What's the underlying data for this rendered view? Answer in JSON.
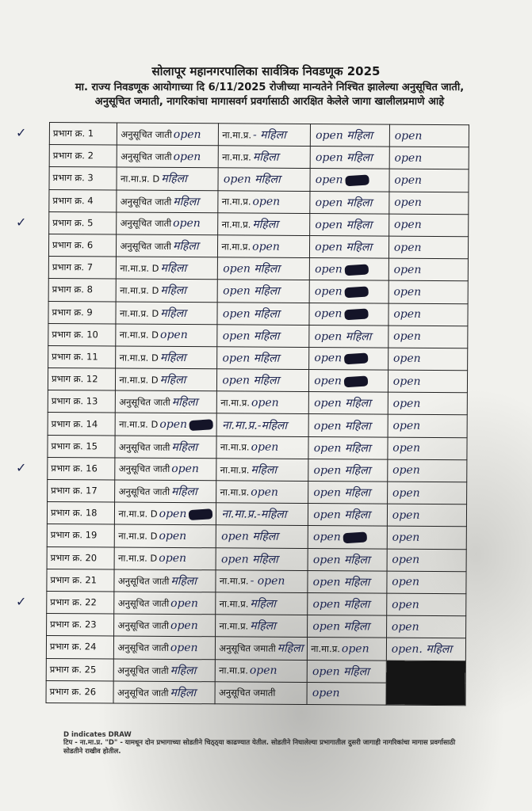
{
  "header": {
    "title": "सोलापूर महानगरपालिका सार्वत्रिक निवडणूक 2025",
    "line1": "मा. राज्य निवडणूक आयोगाच्या दि 6/11/2025 रोजीच्या मान्यतेने निश्चित झालेल्या अनुसूचित जाती,",
    "line2": "अनुसूचित जमाती, नागरिकांचा मागासवर्ग प्रवर्गासाठी आरक्षित केलेले जागा खालीलप्रमाणे आहे"
  },
  "ink_color": "#1c2450",
  "rows": [
    {
      "ward": "प्रभाग क्र. 1",
      "check": true,
      "cells": [
        [
          "अनुसूचित जाती",
          "open",
          false
        ],
        [
          "ना.मा.प्र.",
          "- महिला",
          false
        ],
        [
          "",
          "open महिला",
          false
        ],
        [
          "",
          "open",
          false
        ]
      ]
    },
    {
      "ward": "प्रभाग क्र. 2",
      "cells": [
        [
          "अनुसूचित जाती",
          "open",
          false
        ],
        [
          "ना.मा.प्र.",
          "महिला",
          false
        ],
        [
          "",
          "open महिला",
          false
        ],
        [
          "",
          "open",
          false
        ]
      ]
    },
    {
      "ward": "प्रभाग क्र. 3",
      "cells": [
        [
          "ना.मा.प्र. D",
          "महिला",
          false
        ],
        [
          "",
          "open महिला",
          false
        ],
        [
          "",
          "open",
          true
        ],
        [
          "",
          "open",
          false
        ]
      ]
    },
    {
      "ward": "प्रभाग क्र. 4",
      "cells": [
        [
          "अनुसूचित जाती",
          "महिला",
          false
        ],
        [
          "ना.मा.प्र.",
          "open",
          false
        ],
        [
          "",
          "open महिला",
          false
        ],
        [
          "",
          "open",
          false
        ]
      ]
    },
    {
      "ward": "प्रभाग क्र. 5",
      "check": true,
      "cells": [
        [
          "अनुसूचित जाती",
          "open",
          false
        ],
        [
          "ना.मा.प्र.",
          "महिला",
          false
        ],
        [
          "",
          "open महिला",
          false
        ],
        [
          "",
          "open",
          false
        ]
      ]
    },
    {
      "ward": "प्रभाग क्र. 6",
      "cells": [
        [
          "अनुसूचित जाती",
          "महिला",
          false
        ],
        [
          "ना.मा.प्र.",
          "open",
          false
        ],
        [
          "",
          "open महिला",
          false
        ],
        [
          "",
          "open",
          false
        ]
      ]
    },
    {
      "ward": "प्रभाग क्र. 7",
      "cells": [
        [
          "ना.मा.प्र. D",
          "महिला",
          false
        ],
        [
          "",
          "open महिला",
          false
        ],
        [
          "",
          "open",
          true
        ],
        [
          "",
          "open",
          false
        ]
      ]
    },
    {
      "ward": "प्रभाग क्र. 8",
      "cells": [
        [
          "ना.मा.प्र. D",
          "महिला",
          false
        ],
        [
          "",
          "open महिला",
          false
        ],
        [
          "",
          "open",
          true
        ],
        [
          "",
          "open",
          false
        ]
      ]
    },
    {
      "ward": "प्रभाग क्र. 9",
      "cells": [
        [
          "ना.मा.प्र. D",
          "महिला",
          false
        ],
        [
          "",
          "open महिला",
          false
        ],
        [
          "",
          "open",
          true
        ],
        [
          "",
          "open",
          false
        ]
      ]
    },
    {
      "ward": "प्रभाग क्र. 10",
      "cells": [
        [
          "ना.मा.प्र. D",
          "open",
          false
        ],
        [
          "",
          "open महिला",
          false
        ],
        [
          "",
          "open महिला",
          false
        ],
        [
          "",
          "open",
          false
        ]
      ]
    },
    {
      "ward": "प्रभाग क्र. 11",
      "cells": [
        [
          "ना.मा.प्र. D",
          "महिला",
          false
        ],
        [
          "",
          "open महिला",
          false
        ],
        [
          "",
          "open",
          true
        ],
        [
          "",
          "open",
          false
        ]
      ]
    },
    {
      "ward": "प्रभाग क्र. 12",
      "cells": [
        [
          "ना.मा.प्र. D",
          "महिला",
          false
        ],
        [
          "",
          "open महिला",
          false
        ],
        [
          "",
          "open",
          true
        ],
        [
          "",
          "open",
          false
        ]
      ]
    },
    {
      "ward": "प्रभाग क्र. 13",
      "cells": [
        [
          "अनुसूचित जाती",
          "महिला",
          false
        ],
        [
          "ना.मा.प्र.",
          "open",
          false
        ],
        [
          "",
          "open महिला",
          false
        ],
        [
          "",
          "open",
          false
        ]
      ]
    },
    {
      "ward": "प्रभाग क्र. 14",
      "cells": [
        [
          "ना.मा.प्र. D",
          "open",
          true
        ],
        [
          "",
          "ना.मा.प्र.-महिला",
          false
        ],
        [
          "",
          "open महिला",
          false
        ],
        [
          "",
          "open",
          false
        ]
      ]
    },
    {
      "ward": "प्रभाग क्र. 15",
      "cells": [
        [
          "अनुसूचित जाती",
          "महिला",
          false
        ],
        [
          "ना.मा.प्र.",
          "open",
          false
        ],
        [
          "",
          "open महिला",
          false
        ],
        [
          "",
          "open",
          false
        ]
      ]
    },
    {
      "ward": "प्रभाग क्र. 16",
      "check": true,
      "cells": [
        [
          "अनुसूचित जाती",
          "open",
          false
        ],
        [
          "ना.मा.प्र.",
          "महिला",
          false
        ],
        [
          "",
          "open महिला",
          false
        ],
        [
          "",
          "open",
          false
        ]
      ]
    },
    {
      "ward": "प्रभाग क्र. 17",
      "cells": [
        [
          "अनुसूचित जाती",
          "महिला",
          false
        ],
        [
          "ना.मा.प्र.",
          "open",
          false
        ],
        [
          "",
          "open महिला",
          false
        ],
        [
          "",
          "open",
          false
        ]
      ]
    },
    {
      "ward": "प्रभाग क्र. 18",
      "cells": [
        [
          "ना.मा.प्र. D",
          "open",
          true
        ],
        [
          "",
          "ना.मा.प्र.-महिला",
          false
        ],
        [
          "",
          "open महिला",
          false
        ],
        [
          "",
          "open",
          false
        ]
      ]
    },
    {
      "ward": "प्रभाग क्र. 19",
      "cells": [
        [
          "ना.मा.प्र. D",
          "open",
          false
        ],
        [
          "",
          "open महिला",
          false
        ],
        [
          "",
          "open",
          true
        ],
        [
          "",
          "open",
          false
        ]
      ]
    },
    {
      "ward": "प्रभाग क्र. 20",
      "cells": [
        [
          "ना.मा.प्र. D",
          "open",
          false
        ],
        [
          "",
          "open महिला",
          false
        ],
        [
          "",
          "open महिला",
          false
        ],
        [
          "",
          "open",
          false
        ]
      ]
    },
    {
      "ward": "प्रभाग क्र. 21",
      "cells": [
        [
          "अनुसूचित जाती",
          "महिला",
          false
        ],
        [
          "ना.मा.प्र.",
          "- open",
          false
        ],
        [
          "",
          "open महिला",
          false
        ],
        [
          "",
          "open",
          false
        ]
      ]
    },
    {
      "ward": "प्रभाग क्र. 22",
      "check": true,
      "cells": [
        [
          "अनुसूचित जाती",
          "open",
          false
        ],
        [
          "ना.मा.प्र.",
          "महिला",
          false
        ],
        [
          "",
          "open महिला",
          false
        ],
        [
          "",
          "open",
          false
        ]
      ]
    },
    {
      "ward": "प्रभाग क्र. 23",
      "cells": [
        [
          "अनुसूचित जाती",
          "open",
          false
        ],
        [
          "ना.मा.प्र.",
          "महिला",
          false
        ],
        [
          "",
          "open महिला",
          false
        ],
        [
          "",
          "open",
          false
        ]
      ]
    },
    {
      "ward": "प्रभाग क्र. 24",
      "cells": [
        [
          "अनुसूचित जाती",
          "open",
          false
        ],
        [
          "अनुसूचित जमाती",
          "महिला",
          false
        ],
        [
          "ना.मा.प्र.",
          "open",
          false
        ],
        [
          "",
          "open. महिला",
          false
        ]
      ]
    },
    {
      "ward": "प्रभाग क्र. 25",
      "cells": [
        [
          "अनुसूचित जाती",
          "महिला",
          false
        ],
        [
          "ना.मा.प्र.",
          "open",
          false
        ],
        [
          "",
          "open महिला",
          false
        ],
        null
      ]
    },
    {
      "ward": "प्रभाग क्र. 26",
      "cells": [
        [
          "अनुसूचित जाती",
          "महिला",
          false
        ],
        [
          "अनुसूचित जमाती",
          "",
          false
        ],
        [
          "",
          "open",
          false
        ],
        null
      ]
    }
  ],
  "footer": {
    "legend": "D indicates DRAW",
    "note": "टिप - ना.मा.प्र. \"D\" - यामधून दोन प्रभागाच्या सोडतीने चिठ्ठ्या काढण्यात येतील. सोडतीने निघालेल्या प्रभागातील दुसरी जागाही नागरिकांचा मागास प्रवर्गासाठी सोडतीने राखीव होतील."
  }
}
